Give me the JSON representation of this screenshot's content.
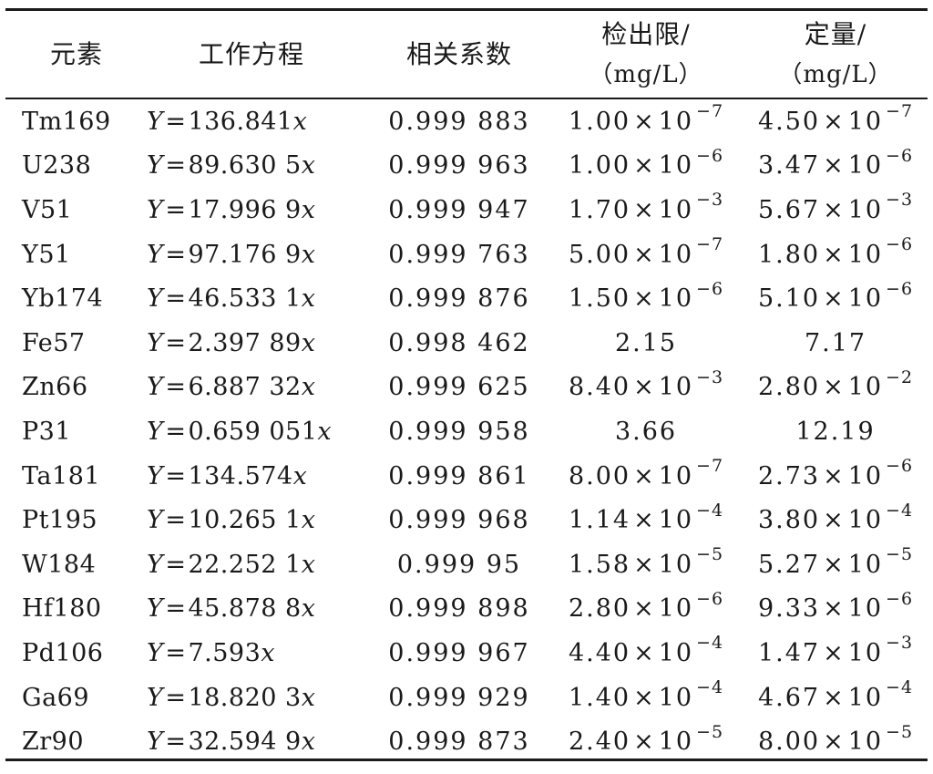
{
  "headers": [
    {
      "line1": "元素",
      "line2": ""
    },
    {
      "line1": "工作方程",
      "line2": ""
    },
    {
      "line1": "相关系数",
      "line2": ""
    },
    {
      "line1": "检出限/",
      "line2": "（mg/L）"
    },
    {
      "line1": "定量/",
      "line2": "（mg/L）"
    }
  ],
  "rows": [
    {
      "element": "Tm169",
      "eq": "136.841",
      "r": "0.999 883",
      "lod": {
        "m": "1.00",
        "e": "−7"
      },
      "loq": {
        "m": "4.50",
        "e": "−7"
      }
    },
    {
      "element": "U238",
      "eq": "89.630 5",
      "r": "0.999 963",
      "lod": {
        "m": "1.00",
        "e": "−6"
      },
      "loq": {
        "m": "3.47",
        "e": "−6"
      }
    },
    {
      "element": "V51",
      "eq": "17.996 9",
      "r": "0.999 947",
      "lod": {
        "m": "1.70",
        "e": "−3"
      },
      "loq": {
        "m": "5.67",
        "e": "−3"
      }
    },
    {
      "element": "Y51",
      "eq": "97.176 9",
      "r": "0.999 763",
      "lod": {
        "m": "5.00",
        "e": "−7"
      },
      "loq": {
        "m": "1.80",
        "e": "−6"
      }
    },
    {
      "element": "Yb174",
      "eq": "46.533 1",
      "r": "0.999 876",
      "lod": {
        "m": "1.50",
        "e": "−6"
      },
      "loq": {
        "m": "5.10",
        "e": "−6"
      }
    },
    {
      "element": "Fe57",
      "eq": "2.397 89",
      "r": "0.998 462",
      "lod": {
        "m": "2.15",
        "e": ""
      },
      "loq": {
        "m": "7.17",
        "e": ""
      }
    },
    {
      "element": "Zn66",
      "eq": "6.887 32",
      "r": "0.999 625",
      "lod": {
        "m": "8.40",
        "e": "−3"
      },
      "loq": {
        "m": "2.80",
        "e": "−2"
      }
    },
    {
      "element": "P31",
      "eq": "0.659 051",
      "r": "0.999 958",
      "lod": {
        "m": "3.66",
        "e": ""
      },
      "loq": {
        "m": "12.19",
        "e": ""
      }
    },
    {
      "element": "Ta181",
      "eq": "134.574",
      "r": "0.999 861",
      "lod": {
        "m": "8.00",
        "e": "−7"
      },
      "loq": {
        "m": "2.73",
        "e": "−6"
      }
    },
    {
      "element": "Pt195",
      "eq": "10.265 1",
      "r": "0.999 968",
      "lod": {
        "m": "1.14",
        "e": "−4"
      },
      "loq": {
        "m": "3.80",
        "e": "−4"
      }
    },
    {
      "element": "W184",
      "eq": "22.252 1",
      "r": "0.999 95",
      "lod": {
        "m": "1.58",
        "e": "−5"
      },
      "loq": {
        "m": "5.27",
        "e": "−5"
      }
    },
    {
      "element": "Hf180",
      "eq": "45.878 8",
      "r": "0.999 898",
      "lod": {
        "m": "2.80",
        "e": "−6"
      },
      "loq": {
        "m": "9.33",
        "e": "−6"
      }
    },
    {
      "element": "Pd106",
      "eq": "7.593",
      "r": "0.999 967",
      "lod": {
        "m": "4.40",
        "e": "−4"
      },
      "loq": {
        "m": "1.47",
        "e": "−3"
      }
    },
    {
      "element": "Ga69",
      "eq": "18.820 3",
      "r": "0.999 929",
      "lod": {
        "m": "1.40",
        "e": "−4"
      },
      "loq": {
        "m": "4.67",
        "e": "−4"
      }
    },
    {
      "element": "Zr90",
      "eq": "32.594 9",
      "r": "0.999 873",
      "lod": {
        "m": "2.40",
        "e": "−5"
      },
      "loq": {
        "m": "8.00",
        "e": "−5"
      }
    }
  ]
}
